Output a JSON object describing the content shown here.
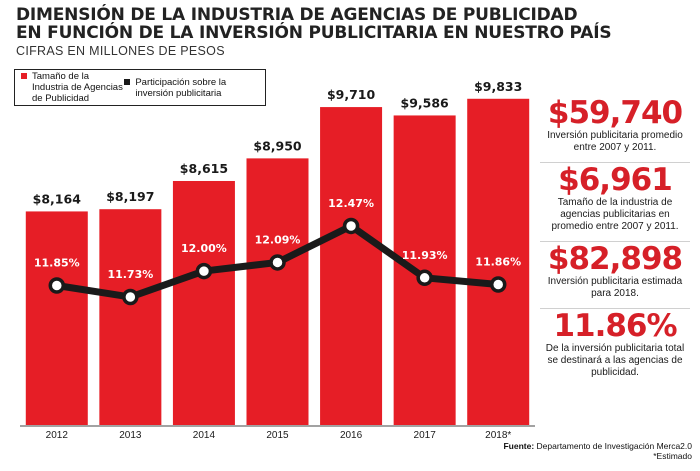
{
  "title": {
    "line1": "DIMENSIÓN DE LA INDUSTRIA DE AGENCIAS DE PUBLICIDAD",
    "line2": "EN FUNCIÓN DE LA INVERSIÓN PUBLICITARIA EN NUESTRO PAÍS",
    "subtitle": "CIFRAS EN MILLONES DE PESOS"
  },
  "legend": {
    "industry": "Tamaño de la Industria de Agencias de Publicidad",
    "share": "Participación sobre la inversión publicitaria"
  },
  "colors": {
    "bar": "#e61e26",
    "line": "#1a1a1a",
    "accent": "#d62028"
  },
  "chart_data": {
    "type": "bar",
    "categories": [
      "2012",
      "2013",
      "2014",
      "2015",
      "2016",
      "2017",
      "2018*"
    ],
    "series": [
      {
        "name": "Tamaño de la Industria de Agencias de Publicidad",
        "type": "bar",
        "values": [
          8164,
          8197,
          8615,
          8950,
          9710,
          9586,
          9833
        ],
        "labels": [
          "$8,164",
          "$8,197",
          "$8,615",
          "$8,950",
          "$9,710",
          "$9,586",
          "$9,833"
        ]
      },
      {
        "name": "Participación sobre la inversión publicitaria",
        "type": "line",
        "values": [
          11.85,
          11.73,
          12.0,
          12.09,
          12.47,
          11.93,
          11.86
        ],
        "labels": [
          "11.85%",
          "11.73%",
          "12.00%",
          "12.09%",
          "12.47%",
          "11.93%",
          "11.86%"
        ]
      }
    ],
    "grid": false,
    "legend_position": "top-left"
  },
  "stats": [
    {
      "value": "$59,740",
      "desc": "Inversión publicitaria promedio entre 2007 y 2011."
    },
    {
      "value": "$6,961",
      "desc": "Tamaño de la industria de agencias publicitarias en promedio entre 2007 y 2011."
    },
    {
      "value": "$82,898",
      "desc": "Inversión publicitaria estimada para 2018."
    },
    {
      "value": "11.86%",
      "desc": "De la inversión publicitaria total se destinará a las agencias de publicidad."
    }
  ],
  "source": {
    "label": "Fuente:",
    "text": "Departamento de Investigación Merca2.0",
    "note": "*Estimado"
  }
}
